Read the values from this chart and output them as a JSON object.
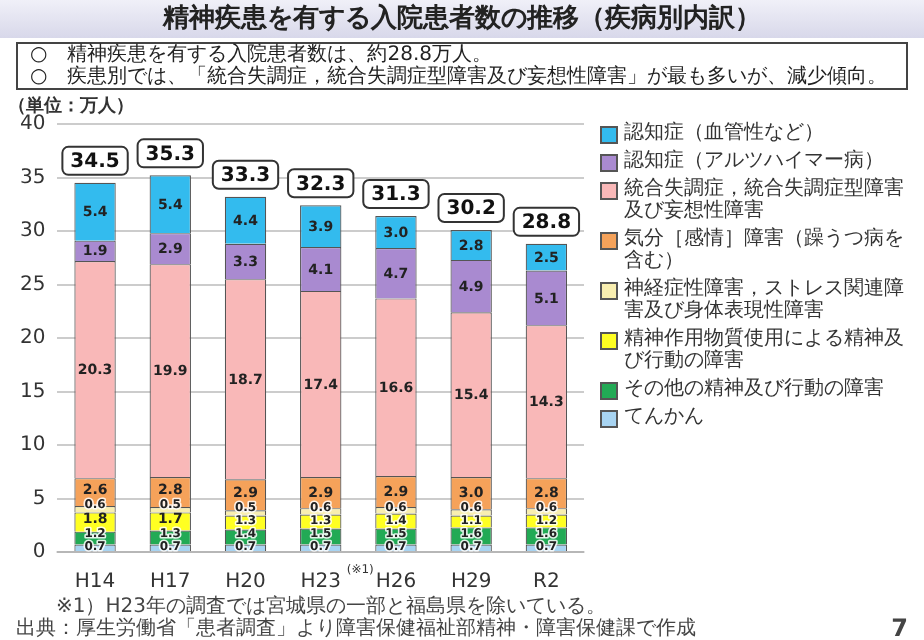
{
  "chart_data": {
    "type": "bar",
    "title": "精神疾患を有する入院患者数の推移（疾病別内訳）",
    "ylabel": "（単位：万人）",
    "categories": [
      "H14",
      "H17",
      "H20",
      "H23",
      "H26",
      "H29",
      "R2"
    ],
    "stacked": true,
    "legend": "right",
    "grid": "y",
    "ylim": [
      0,
      40
    ],
    "yticks": [
      0,
      5,
      10,
      15,
      20,
      25,
      30,
      35,
      40
    ],
    "totals": [
      "34.5",
      "35.3",
      "33.3",
      "32.3",
      "31.3",
      "30.2",
      "28.8"
    ],
    "series": [
      {
        "name": "てんかん",
        "color": "#a8d4f2",
        "values": [
          0.7,
          0.7,
          0.7,
          0.7,
          0.7,
          0.7,
          0.7
        ],
        "value_labels": [
          "0.7",
          "0.7",
          "0.7",
          "0.7",
          "0.7",
          "0.7",
          "0.7"
        ]
      },
      {
        "name": "その他の精神及び行動の障害",
        "color": "#22aa55",
        "values": [
          1.2,
          1.3,
          1.4,
          1.5,
          1.5,
          1.6,
          1.6
        ],
        "value_labels": [
          "1.2",
          "1.3",
          "1.4",
          "1.5",
          "1.5",
          "1.6",
          "1.6"
        ]
      },
      {
        "name": "精神作用物質使用による精神及び行動の障害",
        "color": "#ffff22",
        "values": [
          1.8,
          1.7,
          1.3,
          1.3,
          1.4,
          1.1,
          1.2
        ],
        "value_labels": [
          "1.8",
          "1.7",
          "1.3",
          "1.3",
          "1.4",
          "1.1",
          "1.2"
        ]
      },
      {
        "name": "神経症性障害，ストレス関連障害及び身体表現性障害",
        "color": "#f8eeb0",
        "values": [
          0.6,
          0.5,
          0.5,
          0.6,
          0.6,
          0.6,
          0.6
        ],
        "value_labels": [
          "0.6",
          "0.5",
          "0.5",
          "0.6",
          "0.6",
          "0.6",
          "0.6"
        ]
      },
      {
        "name": "気分［感情］障害（躁うつ病を含む）",
        "color": "#f5a25a",
        "values": [
          2.6,
          2.8,
          2.9,
          2.9,
          2.9,
          3.0,
          2.8
        ],
        "value_labels": [
          "2.6",
          "2.8",
          "2.9",
          "2.9",
          "2.9",
          "3.0",
          "2.8"
        ]
      },
      {
        "name": "統合失調症，統合失調症型障害及び妄想性障害",
        "color": "#f9b8b8",
        "values": [
          20.3,
          19.9,
          18.7,
          17.4,
          16.6,
          15.4,
          14.3
        ],
        "value_labels": [
          "20.3",
          "19.9",
          "18.7",
          "17.4",
          "16.6",
          "15.4",
          "14.3"
        ]
      },
      {
        "name": "認知症（アルツハイマー病）",
        "color": "#a98ad0",
        "values": [
          1.9,
          2.9,
          3.3,
          4.1,
          4.7,
          4.9,
          5.1
        ],
        "value_labels": [
          "1.9",
          "2.9",
          "3.3",
          "4.1",
          "4.7",
          "4.9",
          "5.1"
        ]
      },
      {
        "name": "認知症（血管性など）",
        "color": "#33bbee",
        "values": [
          5.4,
          5.4,
          4.4,
          3.9,
          3.0,
          2.8,
          2.5
        ],
        "value_labels": [
          "5.4",
          "5.4",
          "4.4",
          "3.9",
          "3.0",
          "2.8",
          "2.5"
        ]
      }
    ],
    "annotations": [
      "○　精神疾患を有する入院患者数は、約28.8万人。",
      "○　疾患別では、「統合失調症，統合失調症型障害及び妄想性障害」が最も多いが、減少傾向。",
      "(※1)",
      "※1）H23年の調査では宮城県の一部と福島県を除いている。",
      "出典：厚生労働省「患者調査」より障害保健福祉部精神・障害保健課で作成",
      "7"
    ]
  }
}
